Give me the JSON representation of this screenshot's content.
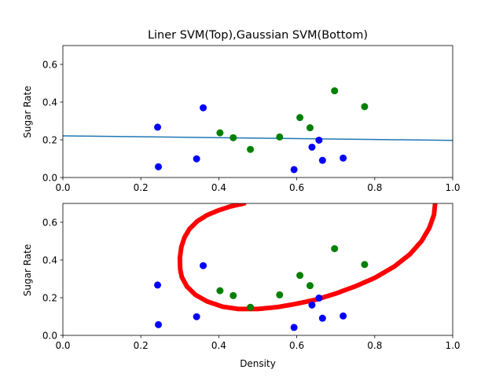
{
  "colors": {
    "class_positive": "#008000",
    "class_negative": "#0000ff",
    "linear_boundary": "#1f77b4",
    "gaussian_boundary": "#ff0000"
  },
  "chart_data": [
    {
      "type": "scatter",
      "title": "Liner SVM(Top),Gaussian SVM(Bottom)",
      "xlabel": "",
      "ylabel": "Sugar Rate",
      "xlim": [
        0,
        1.0
      ],
      "ylim": [
        0,
        0.7
      ],
      "xticks": [
        "0.0",
        "0.2",
        "0.4",
        "0.6",
        "0.8",
        "1.0"
      ],
      "yticks": [
        "0.0",
        "0.2",
        "0.4",
        "0.6"
      ],
      "grid": false,
      "series": [
        {
          "color": "#008000",
          "points": [
            [
              0.403,
              0.237
            ],
            [
              0.437,
              0.211
            ],
            [
              0.481,
              0.149
            ],
            [
              0.556,
              0.215
            ],
            [
              0.608,
              0.318
            ],
            [
              0.634,
              0.264
            ],
            [
              0.697,
              0.46
            ],
            [
              0.774,
              0.376
            ]
          ]
        },
        {
          "color": "#0000ff",
          "points": [
            [
              0.243,
              0.267
            ],
            [
              0.245,
              0.057
            ],
            [
              0.343,
              0.099
            ],
            [
              0.36,
              0.37
            ],
            [
              0.593,
              0.042
            ],
            [
              0.639,
              0.161
            ],
            [
              0.657,
              0.198
            ],
            [
              0.666,
              0.091
            ],
            [
              0.719,
              0.103
            ]
          ]
        }
      ],
      "decision_boundary": {
        "kind": "line",
        "color": "#1f77b4",
        "x": [
          0.0,
          1.0
        ],
        "y": [
          0.221,
          0.197
        ]
      }
    },
    {
      "type": "scatter",
      "title": "",
      "xlabel": "Density",
      "ylabel": "Sugar Rate",
      "xlim": [
        0,
        1.0
      ],
      "ylim": [
        0,
        0.7
      ],
      "xticks": [
        "0.0",
        "0.2",
        "0.4",
        "0.6",
        "0.8",
        "1.0"
      ],
      "yticks": [
        "0.0",
        "0.2",
        "0.4",
        "0.6"
      ],
      "grid": false,
      "series": [
        {
          "color": "#008000",
          "points": [
            [
              0.403,
              0.237
            ],
            [
              0.437,
              0.211
            ],
            [
              0.481,
              0.149
            ],
            [
              0.556,
              0.215
            ],
            [
              0.608,
              0.318
            ],
            [
              0.634,
              0.264
            ],
            [
              0.697,
              0.46
            ],
            [
              0.774,
              0.376
            ]
          ]
        },
        {
          "color": "#0000ff",
          "points": [
            [
              0.243,
              0.267
            ],
            [
              0.245,
              0.057
            ],
            [
              0.343,
              0.099
            ],
            [
              0.36,
              0.37
            ],
            [
              0.593,
              0.042
            ],
            [
              0.639,
              0.161
            ],
            [
              0.657,
              0.198
            ],
            [
              0.666,
              0.091
            ],
            [
              0.719,
              0.103
            ]
          ]
        }
      ],
      "decision_boundary": {
        "kind": "curve",
        "color": "#ff0000",
        "points": [
          [
            0.465,
            0.7
          ],
          [
            0.43,
            0.684
          ],
          [
            0.4,
            0.664
          ],
          [
            0.37,
            0.638
          ],
          [
            0.345,
            0.606
          ],
          [
            0.325,
            0.565
          ],
          [
            0.312,
            0.52
          ],
          [
            0.304,
            0.47
          ],
          [
            0.3,
            0.41
          ],
          [
            0.301,
            0.35
          ],
          [
            0.305,
            0.31
          ],
          [
            0.318,
            0.26
          ],
          [
            0.34,
            0.215
          ],
          [
            0.37,
            0.18
          ],
          [
            0.41,
            0.152
          ],
          [
            0.45,
            0.14
          ],
          [
            0.5,
            0.14
          ],
          [
            0.55,
            0.15
          ],
          [
            0.6,
            0.168
          ],
          [
            0.65,
            0.19
          ],
          [
            0.7,
            0.222
          ],
          [
            0.75,
            0.26
          ],
          [
            0.8,
            0.305
          ],
          [
            0.85,
            0.365
          ],
          [
            0.89,
            0.43
          ],
          [
            0.92,
            0.5
          ],
          [
            0.94,
            0.57
          ],
          [
            0.952,
            0.64
          ],
          [
            0.955,
            0.7
          ]
        ]
      }
    }
  ]
}
